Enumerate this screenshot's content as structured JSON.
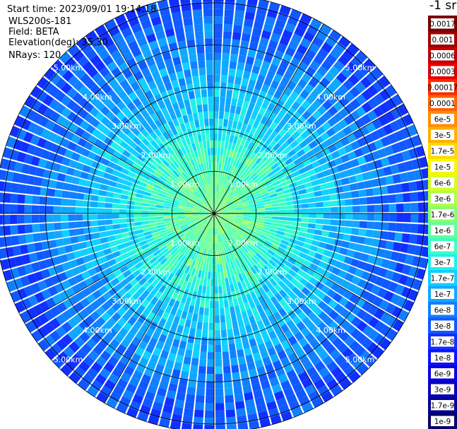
{
  "info": {
    "start_time": "Start time: 2023/09/01 19:14:18",
    "instrument": "WLS200s-181",
    "field": "Field: BETA",
    "elevation": "Elevation(deg): 35.30",
    "nrays": "NRays: 120"
  },
  "unit_label": "-1 sr",
  "chart_data": {
    "type": "heatmap",
    "projection": "polar-ppi",
    "rays": 120,
    "range_rings_km": [
      1,
      2,
      3,
      4,
      5
    ],
    "max_range_km": 5.2,
    "ring_labels": [
      "1.00km",
      "2.00km",
      "3.00km",
      "4.00km",
      "5.00km"
    ],
    "spoke_angles_deg": [
      0,
      30,
      60,
      90,
      120,
      150,
      180,
      210,
      240,
      270,
      300,
      330
    ],
    "colorbar": {
      "labels": [
        "0.0017",
        "0.001",
        "0.0006",
        "0.0003",
        "0.00017",
        "0.0001",
        "6e-5",
        "3e-5",
        "1.7e-5",
        "1e-5",
        "6e-6",
        "3e-6",
        "1.7e-6",
        "1e-6",
        "6e-7",
        "3e-7",
        "1.7e-7",
        "1e-7",
        "6e-8",
        "3e-8",
        "1.7e-8",
        "1e-8",
        "6e-9",
        "3e-9",
        "1.7e-9",
        "1e-9"
      ],
      "colors": [
        "#7a0000",
        "#9e0000",
        "#c60000",
        "#e80000",
        "#ff2a00",
        "#ff6000",
        "#ff8c00",
        "#ffb000",
        "#ffd800",
        "#f8f800",
        "#d8ff20",
        "#b0ff48",
        "#88ff70",
        "#5fff9a",
        "#3cffc0",
        "#20f0e8",
        "#10d0ff",
        "#10a8ff",
        "#1080ff",
        "#1058ff",
        "#1030ff",
        "#0c10ff",
        "#0a00e0",
        "#0800b8",
        "#060090",
        "#040068"
      ]
    }
  }
}
